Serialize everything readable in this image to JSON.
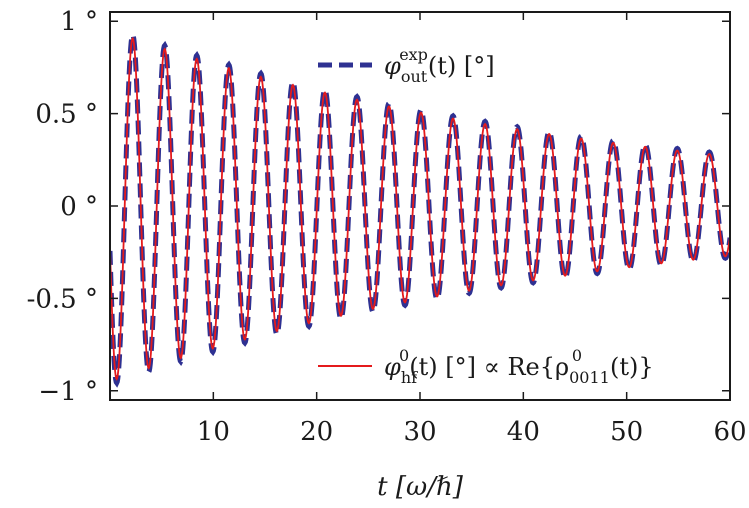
{
  "chart_data": {
    "type": "line",
    "title": "",
    "xlabel": "t [ω/ℏ]",
    "ylabel": "",
    "xlim": [
      0,
      60
    ],
    "ylim": [
      -1.05,
      1.05
    ],
    "x_ticks": [
      {
        "value": 10,
        "label": "10"
      },
      {
        "value": 20,
        "label": "20"
      },
      {
        "value": 30,
        "label": "30"
      },
      {
        "value": 40,
        "label": "40"
      },
      {
        "value": 50,
        "label": "50"
      },
      {
        "value": 60,
        "label": "60"
      }
    ],
    "y_ticks": [
      {
        "value": 1,
        "label": "1 °"
      },
      {
        "value": 0.5,
        "label": "0.5 °"
      },
      {
        "value": 0,
        "label": "0 °"
      },
      {
        "value": -0.5,
        "label": "-0.5 °"
      },
      {
        "value": -1,
        "label": "−1 °"
      }
    ],
    "legend_position": "upper-right and lower-right",
    "series": [
      {
        "name": "φ_out^exp(t) [°]",
        "style": "dashed",
        "color": "#2e3192",
        "model": "damped cosine",
        "period": 3.1,
        "phase_peak_t": 2.2,
        "amplitude_envelope": {
          "t": [
            1,
            60
          ],
          "amp": [
            0.95,
            0.28
          ]
        },
        "peaks": {
          "t": [
            2.2,
            5.3,
            8.4,
            11.5,
            14.6,
            17.7,
            20.8,
            23.9,
            27.0,
            30.1,
            33.2,
            36.3,
            39.4,
            42.5,
            45.6,
            48.7,
            51.8,
            54.9,
            58.0
          ],
          "y": [
            0.95,
            0.86,
            0.82,
            0.77,
            0.73,
            0.69,
            0.65,
            0.61,
            0.56,
            0.52,
            0.49,
            0.46,
            0.43,
            0.4,
            0.38,
            0.36,
            0.34,
            0.32,
            0.29
          ]
        }
      },
      {
        "name": "φ_hf^0(t) [°] ∝ Re{ρ_0011^0(t)}",
        "style": "solid",
        "color": "#e41a1c",
        "model": "damped cosine",
        "period": 3.1,
        "phase_peak_t": 2.2,
        "amplitude_envelope": {
          "t": [
            1,
            60
          ],
          "amp": [
            0.93,
            0.27
          ]
        }
      }
    ],
    "legend": {
      "entry1": {
        "sym": "φ",
        "sub": "out",
        "sup": "exp",
        "arg": "(t) [°]"
      },
      "entry2": {
        "sym": "φ",
        "sub": "hf",
        "sup": "0",
        "arg": "(t) [°] ∝ Re{ρ",
        "sub2": "0011",
        "sup2": "0",
        "arg2": "(t)}"
      }
    }
  },
  "colors": {
    "dashed_series": "#2e3192",
    "solid_series": "#e41a1c",
    "axes": "#1a1a1a"
  }
}
